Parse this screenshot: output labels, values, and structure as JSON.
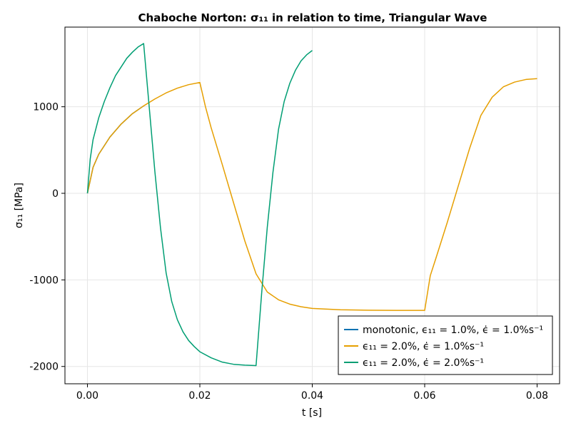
{
  "chart_data": {
    "type": "line",
    "title": "Chaboche Norton: σ₁₁ in relation to time, Triangular Wave",
    "xlabel": "t [s]",
    "ylabel": "σ₁₁ [MPa]",
    "xlim": [
      -0.004,
      0.084
    ],
    "ylim": [
      -2200,
      1920
    ],
    "xticks": [
      0.0,
      0.02,
      0.04,
      0.06,
      0.08
    ],
    "xtick_labels": [
      "0.00",
      "0.02",
      "0.04",
      "0.06",
      "0.08"
    ],
    "yticks": [
      -2000,
      -1000,
      0,
      1000
    ],
    "ytick_labels": [
      "-2000",
      "-1000",
      "0",
      "1000"
    ],
    "grid": true,
    "legend_position": "bottom-right",
    "series": [
      {
        "name": "monotonic, ϵ₁₁ = 1.0%, ϵ̇  = 1.0%s⁻¹",
        "color": "#0072b2",
        "x": [
          0,
          0.001,
          0.002,
          0.004,
          0.006,
          0.008,
          0.01
        ],
        "y": [
          0,
          300,
          450,
          650,
          800,
          920,
          1010
        ]
      },
      {
        "name": "ϵ₁₁ = 2.0%, ϵ̇  = 1.0%s⁻¹",
        "color": "#e69f00",
        "x": [
          0,
          0.001,
          0.002,
          0.004,
          0.006,
          0.008,
          0.01,
          0.012,
          0.014,
          0.016,
          0.018,
          0.02,
          0.021,
          0.022,
          0.024,
          0.026,
          0.028,
          0.03,
          0.032,
          0.034,
          0.036,
          0.038,
          0.04,
          0.045,
          0.05,
          0.055,
          0.06,
          0.061,
          0.062,
          0.064,
          0.066,
          0.068,
          0.07,
          0.072,
          0.074,
          0.076,
          0.078,
          0.08
        ],
        "y": [
          0,
          300,
          450,
          650,
          800,
          920,
          1010,
          1090,
          1160,
          1215,
          1255,
          1280,
          1000,
          760,
          330,
          -110,
          -550,
          -930,
          -1140,
          -1230,
          -1280,
          -1310,
          -1330,
          -1345,
          -1350,
          -1352,
          -1352,
          -950,
          -750,
          -340,
          90,
          520,
          900,
          1110,
          1230,
          1285,
          1315,
          1325
        ]
      },
      {
        "name": "ϵ₁₁ = 2.0%, ϵ̇  = 2.0%s⁻¹",
        "color": "#009e73",
        "x": [
          0,
          0.0005,
          0.001,
          0.002,
          0.003,
          0.004,
          0.005,
          0.006,
          0.007,
          0.008,
          0.009,
          0.01,
          0.011,
          0.012,
          0.013,
          0.014,
          0.015,
          0.016,
          0.017,
          0.018,
          0.019,
          0.02,
          0.022,
          0.024,
          0.026,
          0.028,
          0.03,
          0.031,
          0.032,
          0.033,
          0.034,
          0.035,
          0.036,
          0.037,
          0.038,
          0.039,
          0.04
        ],
        "y": [
          0,
          400,
          620,
          870,
          1060,
          1220,
          1360,
          1460,
          1560,
          1630,
          1690,
          1730,
          990,
          250,
          -400,
          -920,
          -1250,
          -1460,
          -1600,
          -1700,
          -1770,
          -1830,
          -1900,
          -1950,
          -1975,
          -1985,
          -1990,
          -1150,
          -390,
          240,
          740,
          1060,
          1270,
          1420,
          1530,
          1600,
          1650
        ]
      }
    ]
  }
}
